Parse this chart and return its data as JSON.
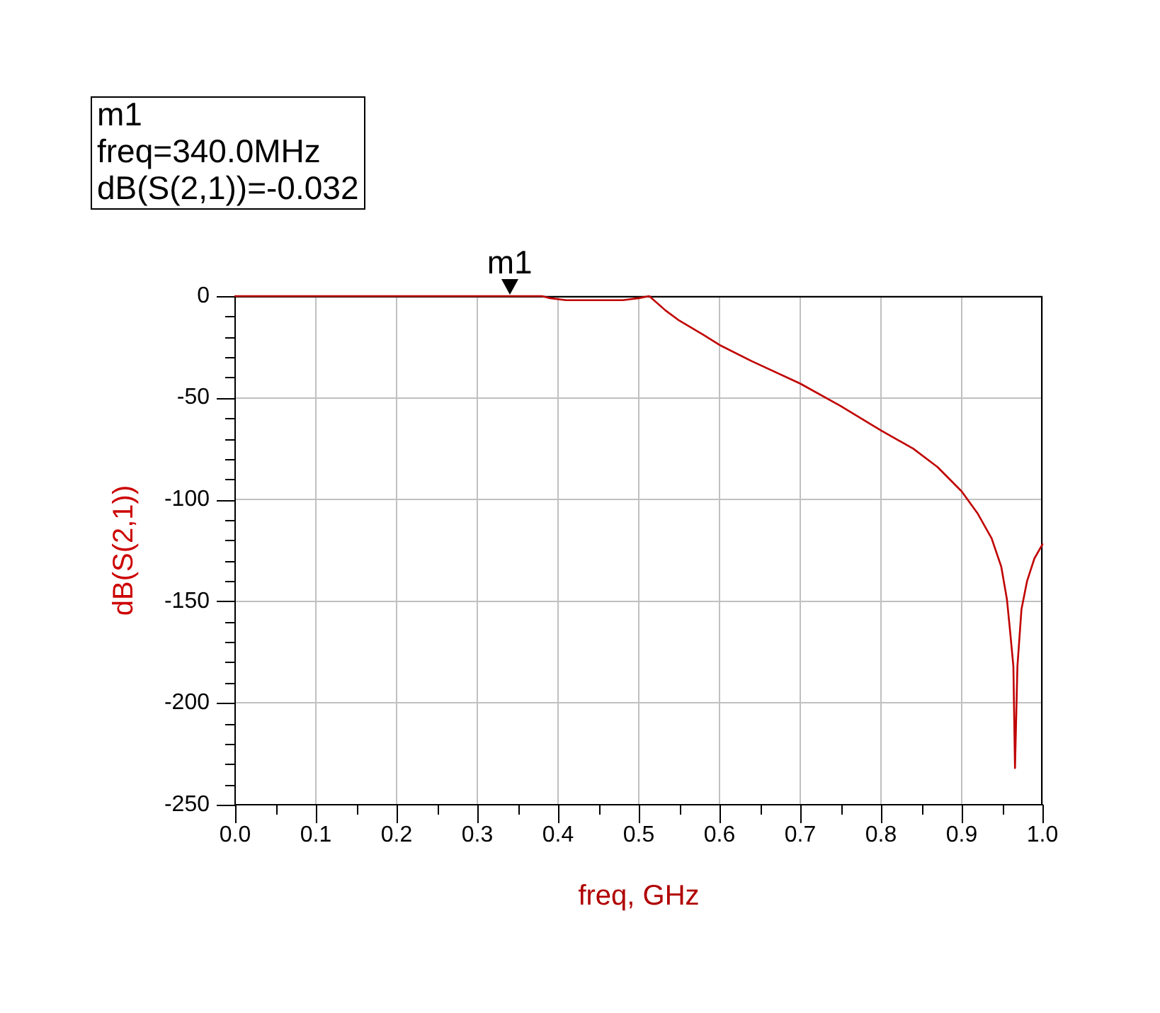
{
  "chart_data": {
    "type": "line",
    "xlabel": "freq, GHz",
    "ylabel": "dB(S(2,1))",
    "x": [
      0,
      0.1,
      0.2,
      0.3,
      0.38,
      0.39,
      0.41,
      0.45,
      0.48,
      0.5,
      0.513,
      0.533,
      0.55,
      0.58,
      0.6,
      0.64,
      0.7,
      0.75,
      0.8,
      0.84,
      0.87,
      0.9,
      0.92,
      0.937,
      0.949,
      0.956,
      0.96,
      0.964,
      0.966,
      0.969,
      0.974,
      0.981,
      0.99,
      1
    ],
    "series": [
      {
        "color": "#c00000",
        "values": [
          0,
          0,
          0,
          0,
          0,
          -1,
          -2,
          -2,
          -2,
          -1,
          0,
          -7,
          -12,
          -19,
          -24,
          -32,
          -43,
          -54,
          -66,
          -75,
          -84,
          -96,
          -107,
          -119,
          -133,
          -149,
          -165,
          -182,
          -232,
          -182,
          -154,
          -140,
          -129,
          -122
        ]
      }
    ],
    "xlim": [
      0,
      1
    ],
    "ylim": [
      -250,
      0
    ],
    "xticks": [
      {
        "value": 0,
        "label": "0.0"
      },
      {
        "value": 0.05,
        "label": null
      },
      {
        "value": 0.1,
        "label": "0.1"
      },
      {
        "value": 0.15,
        "label": null
      },
      {
        "value": 0.2,
        "label": "0.2"
      },
      {
        "value": 0.25,
        "label": null
      },
      {
        "value": 0.3,
        "label": "0.3"
      },
      {
        "value": 0.35,
        "label": null
      },
      {
        "value": 0.4,
        "label": "0.4"
      },
      {
        "value": 0.45,
        "label": null
      },
      {
        "value": 0.5,
        "label": "0.5"
      },
      {
        "value": 0.55,
        "label": null
      },
      {
        "value": 0.6,
        "label": "0.6"
      },
      {
        "value": 0.65,
        "label": null
      },
      {
        "value": 0.7,
        "label": "0.7"
      },
      {
        "value": 0.75,
        "label": null
      },
      {
        "value": 0.8,
        "label": "0.8"
      },
      {
        "value": 0.85,
        "label": null
      },
      {
        "value": 0.9,
        "label": "0.9"
      },
      {
        "value": 0.95,
        "label": null
      },
      {
        "value": 1,
        "label": "1.0"
      }
    ],
    "yticks": [
      -250,
      {
        "value": -240,
        "label": null
      },
      {
        "value": -230,
        "label": null
      },
      {
        "value": -220,
        "label": null
      },
      {
        "value": -210,
        "label": null
      },
      -200,
      {
        "value": -190,
        "label": null
      },
      {
        "value": -180,
        "label": null
      },
      {
        "value": -170,
        "label": null
      },
      {
        "value": -160,
        "label": null
      },
      -150,
      {
        "value": -140,
        "label": null
      },
      {
        "value": -130,
        "label": null
      },
      {
        "value": -120,
        "label": null
      },
      {
        "value": -110,
        "label": null
      },
      -100,
      {
        "value": -90,
        "label": null
      },
      {
        "value": -80,
        "label": null
      },
      {
        "value": -70,
        "label": null
      },
      {
        "value": -60,
        "label": null
      },
      -50,
      {
        "value": -40,
        "label": null
      },
      {
        "value": -30,
        "label": null
      },
      {
        "value": -20,
        "label": null
      },
      {
        "value": -10,
        "label": null
      },
      0
    ],
    "grid": true,
    "marker": "none",
    "annotations": [
      "m1\nfreq=340.0MHz\ndB(S(2,1))=-0.032",
      {
        "text": "m1",
        "x": 0.34,
        "y": -0.032
      }
    ]
  }
}
